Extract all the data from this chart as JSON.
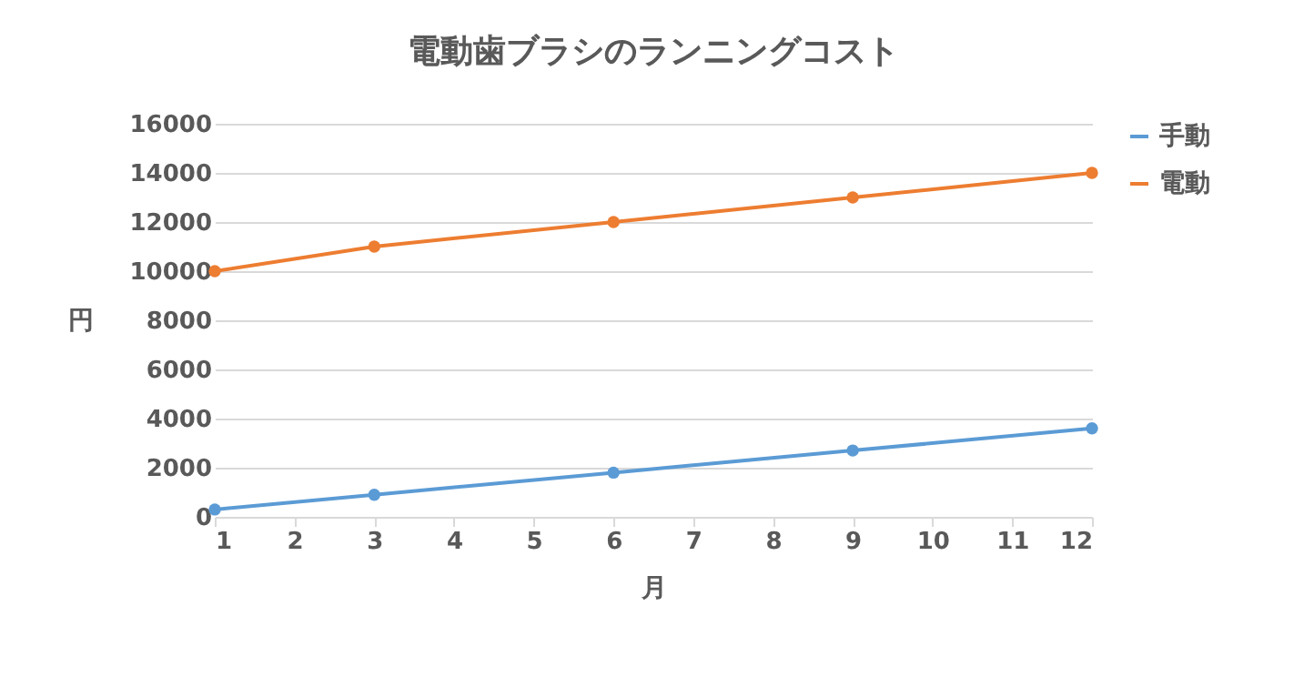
{
  "chart_data": {
    "type": "line",
    "title": "電動歯ブラシのランニングコスト",
    "xlabel": "月",
    "ylabel": "円",
    "x": [
      1,
      3,
      6,
      9,
      12
    ],
    "series": [
      {
        "name": "手動",
        "color": "#5b9bd5",
        "values": [
          300,
          900,
          1800,
          2700,
          3600
        ]
      },
      {
        "name": "電動",
        "color": "#ed7d31",
        "values": [
          10000,
          11000,
          12000,
          13000,
          14000
        ]
      }
    ],
    "xlim": [
      1,
      12
    ],
    "xticks": [
      1,
      2,
      3,
      4,
      5,
      6,
      7,
      8,
      9,
      10,
      11,
      12
    ],
    "ylim": [
      0,
      16000
    ],
    "yticks": [
      0,
      2000,
      4000,
      6000,
      8000,
      10000,
      12000,
      14000,
      16000
    ],
    "grid": "y",
    "legend": "right",
    "marker": "circle",
    "line_style": "solid"
  }
}
